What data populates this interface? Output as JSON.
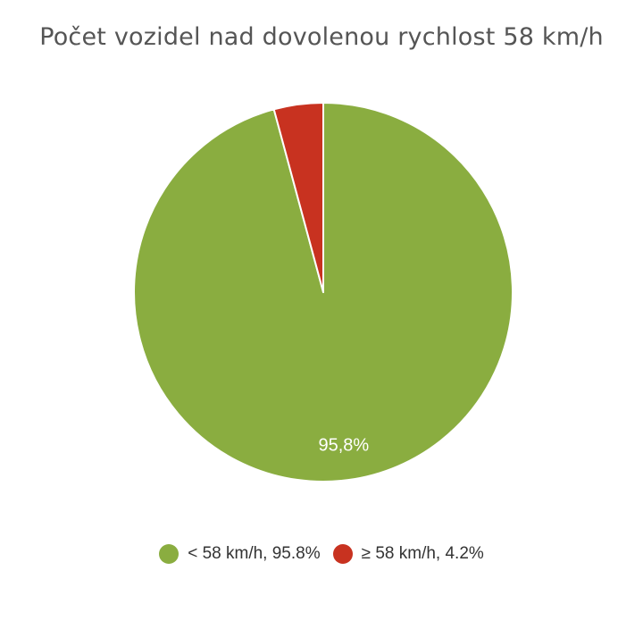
{
  "chart_data": {
    "type": "pie",
    "title": "Počet vozidel nad dovolenou rychlost 58 km/h",
    "slices": [
      {
        "label": "< 58 km/h",
        "value": 95.8,
        "color": "#8aad40",
        "data_label": "95,8%",
        "legend_text": "< 58 km/h, 95.8%"
      },
      {
        "label": "≥ 58 km/h",
        "value": 4.2,
        "color": "#c83220",
        "data_label": "",
        "legend_text": "≥ 58 km/h, 4.2%"
      }
    ],
    "legend_position": "bottom"
  }
}
